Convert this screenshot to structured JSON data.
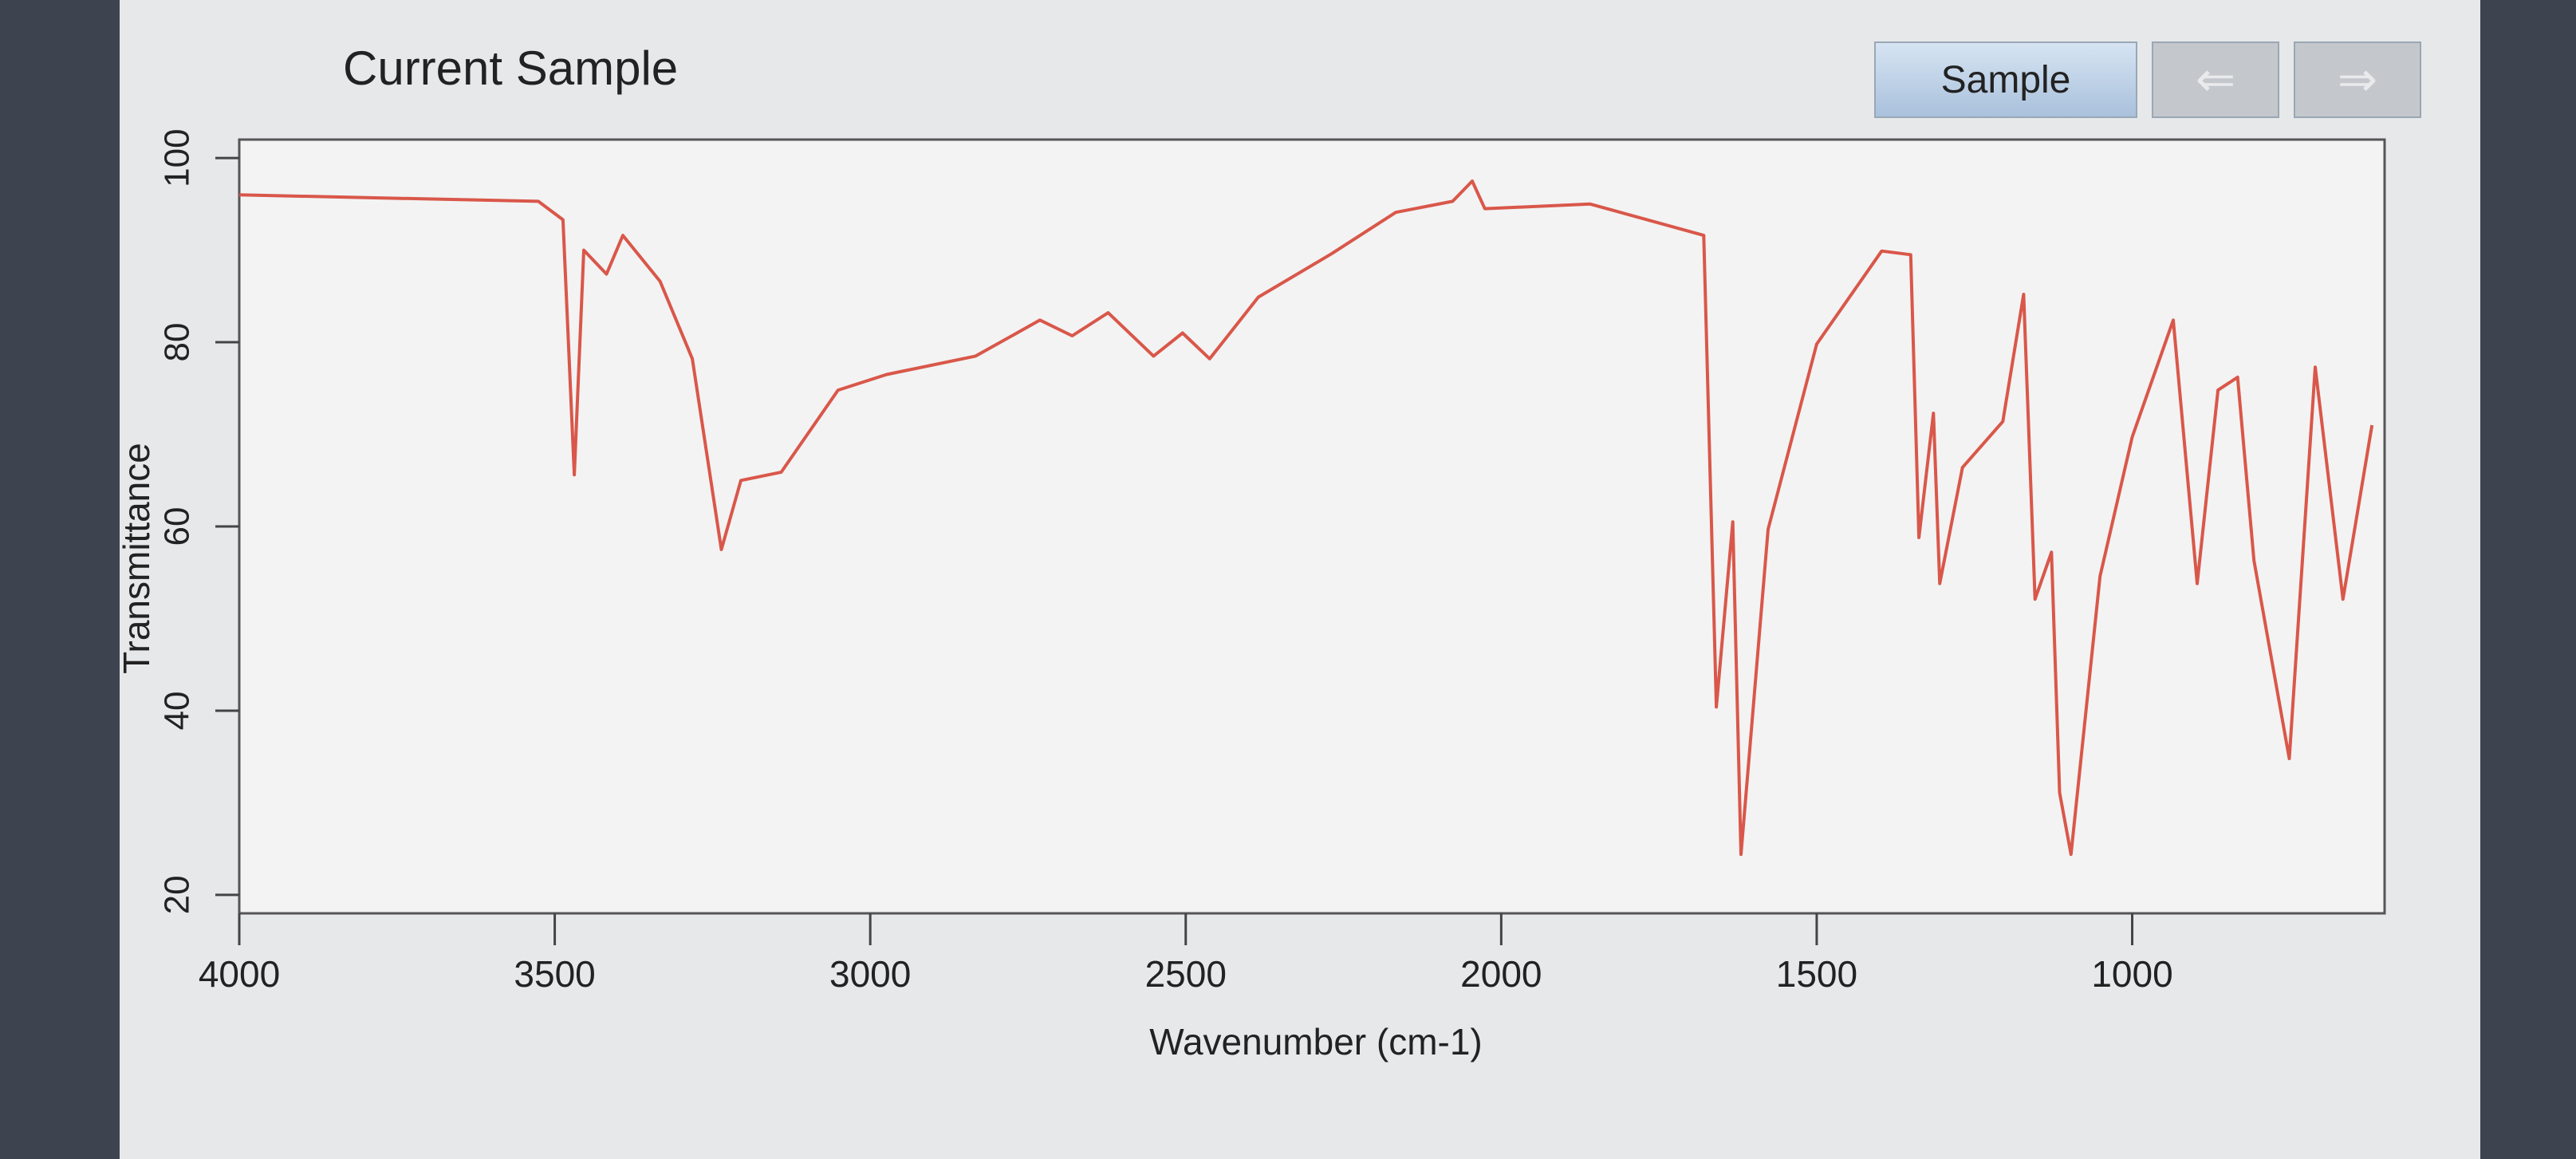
{
  "toolbar": {
    "sample_button": "Sample"
  },
  "chart_data": {
    "type": "line",
    "title": "Current Sample",
    "x_label": "Wavenumber (cm-1)",
    "y_label": "Transmittance",
    "color": "#d9574a",
    "x": [
      4000,
      3526,
      3487,
      3469,
      3454,
      3418,
      3392,
      3333,
      3282,
      3236,
      3205,
      3141,
      3051,
      2974,
      2833,
      2731,
      2680,
      2623,
      2551,
      2505,
      2462,
      2385,
      2269,
      2167,
      2077,
      2046,
      2026,
      1859,
      1679,
      1659,
      1633,
      1620,
      1577,
      1500,
      1397,
      1351,
      1338,
      1315,
      1305,
      1269,
      1205,
      1172,
      1154,
      1128,
      1115,
      1097,
      1051,
      1000,
      935,
      897,
      864,
      833,
      807,
      751,
      710,
      666,
      620
    ],
    "values": [
      96,
      95.3,
      93.3,
      65.6,
      90,
      87.4,
      91.6,
      86.6,
      78.2,
      57.5,
      65,
      65.9,
      74.8,
      76.5,
      78.5,
      82.4,
      80.7,
      83.2,
      78.5,
      81,
      78.2,
      84.9,
      89.6,
      94.1,
      95.3,
      97.5,
      94.5,
      95,
      91.6,
      40.4,
      60.5,
      24.4,
      59.7,
      79.8,
      89.9,
      89.5,
      58.8,
      72.3,
      53.8,
      66.4,
      71.4,
      85.2,
      52.1,
      57.2,
      31.1,
      24.4,
      54.6,
      69.7,
      82.4,
      53.8,
      74.8,
      76.2,
      56.3,
      34.8,
      77.3,
      52.1,
      71
    ],
    "xlim": [
      4000,
      600
    ],
    "xticks": [
      4000,
      3500,
      3000,
      2500,
      2000,
      1500,
      1000
    ],
    "ylim": [
      18,
      102
    ],
    "yticks": [
      20,
      40,
      60,
      80,
      100
    ]
  }
}
